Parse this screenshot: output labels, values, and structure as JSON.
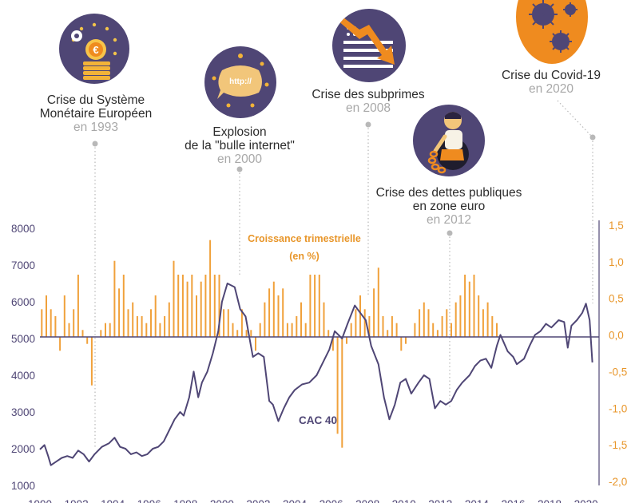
{
  "colors": {
    "cac_line": "#4f4675",
    "bars": "#f0a13b",
    "bar_label": "#e8962a",
    "badge_dark": "#4f4675",
    "badge_orange": "#ef8b1f",
    "leader": "#b8b8b8",
    "axis_text": "#4f4675",
    "right_axis_text": "#e8962a"
  },
  "annotations": [
    {
      "title_lines": [
        "Crise du Système",
        "Monétaire Européen"
      ],
      "year": "en 1993",
      "icon": "euro-coins-icon"
    },
    {
      "title_lines": [
        "Explosion",
        "de la \"bulle internet\""
      ],
      "year": "en 2000",
      "icon": "http-bubble-icon"
    },
    {
      "title_lines": [
        "Crise des subprimes"
      ],
      "year": "en 2008",
      "icon": "falling-flag-chart-icon"
    },
    {
      "title_lines": [
        "Crise des dettes publiques",
        "en zone euro"
      ],
      "year": "en 2012",
      "icon": "chained-man-icon"
    },
    {
      "title_lines": [
        "Crise du Covid-19"
      ],
      "year": "en 2020",
      "icon": "virus-icon"
    }
  ],
  "chart_data": {
    "type": "bar+line",
    "x_range": [
      1990,
      2020.5
    ],
    "x_ticks": [
      "1990",
      "1992",
      "1994",
      "1996",
      "1998",
      "2000",
      "2002",
      "2004",
      "2006",
      "2008",
      "2010",
      "2012",
      "2014",
      "2016",
      "2018",
      "2020"
    ],
    "left_axis": {
      "range": [
        1000,
        8000
      ],
      "ticks": [
        "1000",
        "2000",
        "3000",
        "4000",
        "5000",
        "6000",
        "7000",
        "8000"
      ]
    },
    "right_axis": {
      "range": [
        -2.0,
        1.5
      ],
      "ticks": [
        "-2,0",
        "-1,5",
        "-1,0",
        "-0,5",
        "0,0",
        "0,5",
        "1,0",
        "1,5"
      ]
    },
    "bar_series": {
      "label_lines": [
        "Croissance trimestrielle",
        "(en %)"
      ],
      "start_year": 1990.1,
      "step_years": 0.25,
      "values": [
        0.4,
        0.6,
        0.4,
        0.3,
        -0.2,
        0.6,
        0.2,
        0.4,
        0.9,
        0.1,
        -0.1,
        -0.7,
        0.0,
        0.1,
        0.2,
        0.2,
        1.1,
        0.7,
        0.9,
        0.4,
        0.5,
        0.3,
        0.3,
        0.2,
        0.4,
        0.6,
        0.2,
        0.3,
        0.5,
        1.1,
        0.9,
        0.9,
        0.8,
        0.9,
        0.6,
        0.8,
        0.9,
        1.4,
        0.9,
        0.9,
        0.4,
        0.4,
        0.2,
        0.1,
        0.4,
        0.1,
        0.1,
        -0.2,
        0.2,
        0.5,
        0.7,
        0.8,
        0.6,
        0.7,
        0.2,
        0.2,
        0.3,
        0.5,
        0.2,
        0.9,
        0.9,
        0.9,
        0.5,
        0.1,
        -0.2,
        -1.4,
        -1.6,
        -0.1,
        0.2,
        0.4,
        0.6,
        0.4,
        0.3,
        0.7,
        1.0,
        0.3,
        0.1,
        0.3,
        0.2,
        -0.2,
        -0.1,
        0.0,
        0.2,
        0.4,
        0.5,
        0.4,
        0.2,
        0.1,
        0.3,
        0.4,
        0.2,
        0.5,
        0.6,
        0.9,
        0.8,
        0.9,
        0.6,
        0.4,
        0.5,
        0.3,
        0.2
      ],
      "partial": true
    },
    "line_series": {
      "name": "CAC 40",
      "points": [
        [
          1990.0,
          1980
        ],
        [
          1990.25,
          2100
        ],
        [
          1990.45,
          1800
        ],
        [
          1990.6,
          1550
        ],
        [
          1990.9,
          1650
        ],
        [
          1991.2,
          1750
        ],
        [
          1991.5,
          1800
        ],
        [
          1991.8,
          1750
        ],
        [
          1992.1,
          1950
        ],
        [
          1992.4,
          1850
        ],
        [
          1992.7,
          1650
        ],
        [
          1993.0,
          1850
        ],
        [
          1993.4,
          2050
        ],
        [
          1993.8,
          2150
        ],
        [
          1994.1,
          2300
        ],
        [
          1994.4,
          2050
        ],
        [
          1994.7,
          2000
        ],
        [
          1995.0,
          1850
        ],
        [
          1995.3,
          1900
        ],
        [
          1995.6,
          1800
        ],
        [
          1995.9,
          1850
        ],
        [
          1996.2,
          2000
        ],
        [
          1996.5,
          2050
        ],
        [
          1996.8,
          2200
        ],
        [
          1997.1,
          2500
        ],
        [
          1997.4,
          2800
        ],
        [
          1997.7,
          3000
        ],
        [
          1997.9,
          2900
        ],
        [
          1998.2,
          3400
        ],
        [
          1998.45,
          4100
        ],
        [
          1998.7,
          3400
        ],
        [
          1998.9,
          3800
        ],
        [
          1999.2,
          4100
        ],
        [
          1999.5,
          4600
        ],
        [
          1999.8,
          5200
        ],
        [
          2000.0,
          6000
        ],
        [
          2000.3,
          6500
        ],
        [
          2000.7,
          6400
        ],
        [
          2001.0,
          5800
        ],
        [
          2001.3,
          5600
        ],
        [
          2001.7,
          4500
        ],
        [
          2002.0,
          4600
        ],
        [
          2002.3,
          4500
        ],
        [
          2002.6,
          3300
        ],
        [
          2002.8,
          3200
        ],
        [
          2003.1,
          2750
        ],
        [
          2003.4,
          3100
        ],
        [
          2003.7,
          3400
        ],
        [
          2004.0,
          3600
        ],
        [
          2004.4,
          3750
        ],
        [
          2004.8,
          3800
        ],
        [
          2005.2,
          4000
        ],
        [
          2005.6,
          4400
        ],
        [
          2005.9,
          4700
        ],
        [
          2006.2,
          5200
        ],
        [
          2006.6,
          5000
        ],
        [
          2006.9,
          5400
        ],
        [
          2007.3,
          5900
        ],
        [
          2007.6,
          5700
        ],
        [
          2007.9,
          5500
        ],
        [
          2008.2,
          4800
        ],
        [
          2008.6,
          4300
        ],
        [
          2008.9,
          3400
        ],
        [
          2009.2,
          2800
        ],
        [
          2009.5,
          3200
        ],
        [
          2009.8,
          3800
        ],
        [
          2010.1,
          3900
        ],
        [
          2010.4,
          3500
        ],
        [
          2010.8,
          3800
        ],
        [
          2011.1,
          4000
        ],
        [
          2011.4,
          3900
        ],
        [
          2011.7,
          3100
        ],
        [
          2012.0,
          3300
        ],
        [
          2012.3,
          3200
        ],
        [
          2012.6,
          3300
        ],
        [
          2012.9,
          3600
        ],
        [
          2013.2,
          3800
        ],
        [
          2013.6,
          4000
        ],
        [
          2013.9,
          4250
        ],
        [
          2014.2,
          4400
        ],
        [
          2014.5,
          4450
        ],
        [
          2014.8,
          4200
        ],
        [
          2015.1,
          4800
        ],
        [
          2015.3,
          5100
        ],
        [
          2015.7,
          4650
        ],
        [
          2016.0,
          4500
        ],
        [
          2016.2,
          4300
        ],
        [
          2016.6,
          4450
        ],
        [
          2016.9,
          4800
        ],
        [
          2017.2,
          5100
        ],
        [
          2017.5,
          5200
        ],
        [
          2017.8,
          5400
        ],
        [
          2018.1,
          5300
        ],
        [
          2018.5,
          5500
        ],
        [
          2018.8,
          5450
        ],
        [
          2019.0,
          4750
        ],
        [
          2019.2,
          5350
        ],
        [
          2019.5,
          5500
        ],
        [
          2019.8,
          5700
        ],
        [
          2020.0,
          5950
        ],
        [
          2020.2,
          5500
        ],
        [
          2020.35,
          4350
        ]
      ]
    }
  }
}
